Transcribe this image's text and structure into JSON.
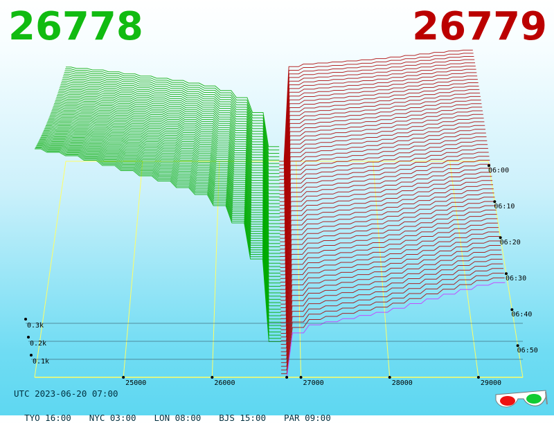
{
  "header": {
    "bid": "26778",
    "ask": "26779"
  },
  "footer": {
    "utc": "UTC 2023-06-20 07:00",
    "zones": [
      "TYO 16:00",
      "NYC 03:00",
      "LON 08:00",
      "BJS 15:00",
      "PAR 09:00"
    ]
  },
  "colors": {
    "bid": "#00aa00",
    "ask": "#aa0000",
    "grid": "#ffff66",
    "latest_ask": "#cc33ff"
  },
  "icons": {
    "glasses": "3d-glasses-icon"
  },
  "chart_data": {
    "type": "3d-depth-waterfall",
    "price_ticks": [
      25000,
      26000,
      27000,
      28000,
      29000
    ],
    "price_range": [
      24000,
      29500
    ],
    "mid_price": 26778,
    "time_ticks": [
      "06:00",
      "06:10",
      "06:20",
      "06:30",
      "06:40",
      "06:50"
    ],
    "volume_ticks": [
      "0.1k",
      "0.2k",
      "0.3k"
    ],
    "volume_max": 0.55,
    "bid_profile": [
      [
        24000,
        0.55
      ],
      [
        24500,
        0.53
      ],
      [
        25000,
        0.5
      ],
      [
        25500,
        0.47
      ],
      [
        26000,
        0.43
      ],
      [
        26400,
        0.35
      ],
      [
        26600,
        0.22
      ],
      [
        26778,
        0.0
      ]
    ],
    "ask_profile": [
      [
        26779,
        0.0
      ],
      [
        26900,
        0.08
      ],
      [
        27000,
        0.12
      ],
      [
        27500,
        0.14
      ],
      [
        28000,
        0.16
      ],
      [
        28500,
        0.19
      ],
      [
        29000,
        0.22
      ],
      [
        29300,
        0.23
      ]
    ]
  }
}
